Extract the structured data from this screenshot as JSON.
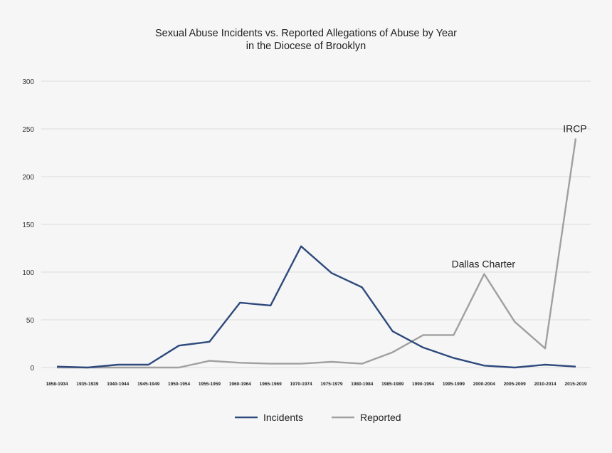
{
  "chart_data": {
    "type": "line",
    "title": "Sexual Abuse Incidents vs. Reported Allegations of Abuse by Year",
    "subtitle": "in the Diocese of Brooklyn",
    "xlabel": "",
    "ylabel": "",
    "ylim": [
      0,
      300
    ],
    "yticks": [
      0,
      50,
      100,
      150,
      200,
      250,
      300
    ],
    "grid": true,
    "legend_position": "bottom",
    "categories": [
      "1858-1934",
      "1935-1939",
      "1940-1944",
      "1945-1949",
      "1950-1954",
      "1955-1959",
      "1960-1964",
      "1965-1969",
      "1970-1974",
      "1975-1979",
      "1980-1984",
      "1985-1989",
      "1990-1994",
      "1995-1999",
      "2000-2004",
      "2005-2009",
      "2010-2014",
      "2015-2019"
    ],
    "series": [
      {
        "name": "Incidents",
        "color": "#2e4a7d",
        "values": [
          1,
          0,
          3,
          3,
          23,
          27,
          68,
          65,
          127,
          99,
          84,
          38,
          21,
          10,
          2,
          0,
          3,
          1
        ]
      },
      {
        "name": "Reported",
        "color": "#a0a0a0",
        "values": [
          0,
          0,
          0,
          0,
          0,
          7,
          5,
          4,
          4,
          6,
          4,
          16,
          34,
          34,
          98,
          48,
          20,
          240
        ]
      }
    ],
    "annotations": [
      {
        "text": "Dallas Charter",
        "category": "2000-2004",
        "y": 98
      },
      {
        "text": "IRCP",
        "category": "2015-2019",
        "y": 240
      }
    ]
  }
}
